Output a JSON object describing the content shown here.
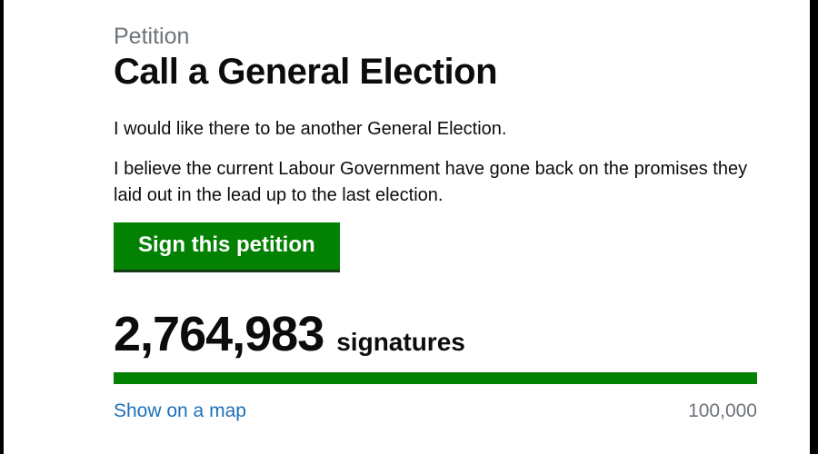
{
  "header": {
    "kicker": "Petition",
    "title": "Call a General Election"
  },
  "description": {
    "para1": "I would like there to be another General Election.",
    "para2": "I believe the current Labour Government have gone back on the promises they laid out in the lead up to the last election."
  },
  "actions": {
    "sign_button_label": "Sign this petition"
  },
  "signatures": {
    "count": "2,764,983",
    "label": "signatures",
    "progress_percent": 100,
    "map_link_label": "Show on a map",
    "threshold_label": "100,000"
  },
  "colors": {
    "green": "#028102",
    "button_shadow": "#123c12",
    "link_blue": "#1d70b8",
    "text": "#0b0c0c",
    "muted_gray": "#6e747a"
  }
}
